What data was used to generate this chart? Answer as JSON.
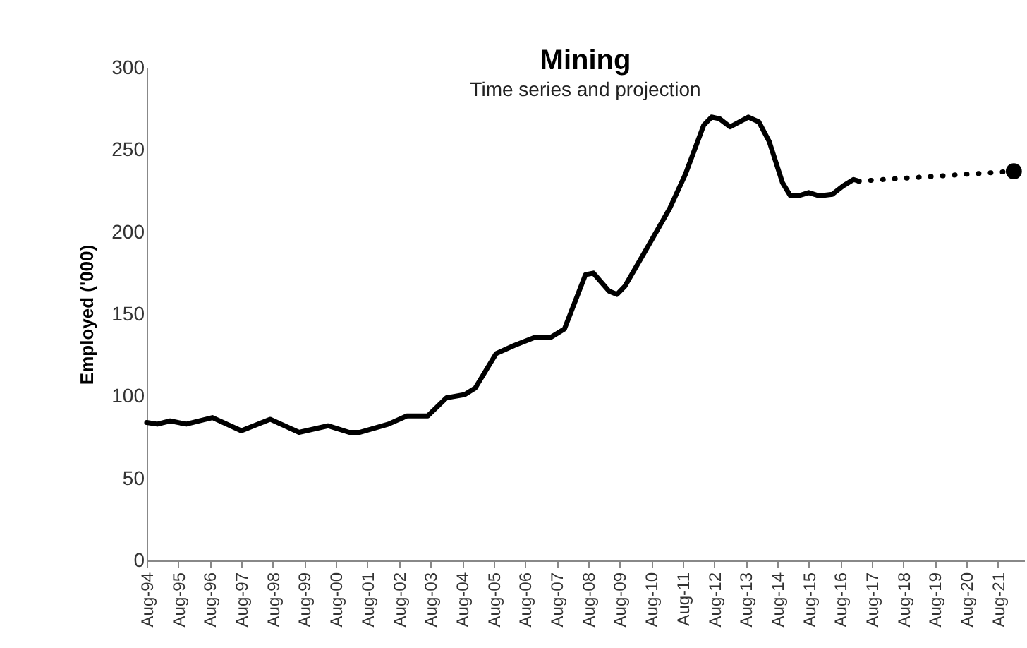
{
  "chart_data": {
    "type": "line",
    "title": "Mining",
    "subtitle": "Time series and projection",
    "ylabel": "Employed ('000)",
    "ylim": [
      0,
      300
    ],
    "yticks": [
      0,
      50,
      100,
      150,
      200,
      250,
      300
    ],
    "xlim": [
      "1994-08",
      "2022-06"
    ],
    "xticks": [
      {
        "value": "1994-08",
        "label": "Aug-94"
      },
      {
        "value": "1995-08",
        "label": "Aug-95"
      },
      {
        "value": "1996-08",
        "label": "Aug-96"
      },
      {
        "value": "1997-08",
        "label": "Aug-97"
      },
      {
        "value": "1998-08",
        "label": "Aug-98"
      },
      {
        "value": "1999-08",
        "label": "Aug-99"
      },
      {
        "value": "2000-08",
        "label": "Aug-00"
      },
      {
        "value": "2001-08",
        "label": "Aug-01"
      },
      {
        "value": "2002-08",
        "label": "Aug-02"
      },
      {
        "value": "2003-08",
        "label": "Aug-03"
      },
      {
        "value": "2004-08",
        "label": "Aug-04"
      },
      {
        "value": "2005-08",
        "label": "Aug-05"
      },
      {
        "value": "2006-08",
        "label": "Aug-06"
      },
      {
        "value": "2007-08",
        "label": "Aug-07"
      },
      {
        "value": "2008-08",
        "label": "Aug-08"
      },
      {
        "value": "2009-08",
        "label": "Aug-09"
      },
      {
        "value": "2010-08",
        "label": "Aug-10"
      },
      {
        "value": "2011-08",
        "label": "Aug-11"
      },
      {
        "value": "2012-08",
        "label": "Aug-12"
      },
      {
        "value": "2013-08",
        "label": "Aug-13"
      },
      {
        "value": "2014-08",
        "label": "Aug-14"
      },
      {
        "value": "2015-08",
        "label": "Aug-15"
      },
      {
        "value": "2016-08",
        "label": "Aug-16"
      },
      {
        "value": "2017-08",
        "label": "Aug-17"
      },
      {
        "value": "2018-08",
        "label": "Aug-18"
      },
      {
        "value": "2019-08",
        "label": "Aug-19"
      },
      {
        "value": "2020-08",
        "label": "Aug-20"
      },
      {
        "value": "2021-08",
        "label": "Aug-21"
      }
    ],
    "grid": false,
    "series": [
      {
        "color": "#000000",
        "line_style": "solid",
        "x": [
          "1994-08",
          "1994-12",
          "1995-05",
          "1995-11",
          "1996-09",
          "1997-08",
          "1998-07",
          "1999-06",
          "2000-05",
          "2001-01",
          "2001-05",
          "2002-04",
          "2002-11",
          "2003-07",
          "2004-02",
          "2004-09",
          "2005-01",
          "2005-09",
          "2006-04",
          "2006-12",
          "2007-06",
          "2007-11",
          "2008-07",
          "2008-10",
          "2009-04",
          "2009-07",
          "2009-10",
          "2010-06",
          "2011-03",
          "2011-09",
          "2012-04",
          "2012-07",
          "2012-10",
          "2013-02",
          "2013-09",
          "2014-01",
          "2014-05",
          "2014-10",
          "2015-01",
          "2015-04",
          "2015-08",
          "2015-12",
          "2016-05",
          "2016-09",
          "2017-01",
          "2017-03"
        ],
        "values": [
          84,
          83,
          85,
          83,
          87,
          79,
          86,
          78,
          82,
          78,
          78,
          83,
          88,
          88,
          99,
          101,
          105,
          126,
          131,
          136,
          136,
          141,
          174,
          175,
          164,
          162,
          167,
          189,
          214,
          235,
          265,
          270,
          269,
          264,
          270,
          267,
          255,
          230,
          222,
          222,
          224,
          222,
          223,
          228,
          232,
          231
        ]
      },
      {
        "color": "#000000",
        "line_style": "dotted",
        "x": [
          "2017-03",
          "2022-02"
        ],
        "values": [
          231,
          237
        ]
      },
      {
        "type": "scatter",
        "color": "#000000",
        "marker": "circle",
        "x": [
          "2022-02"
        ],
        "values": [
          237
        ]
      }
    ]
  }
}
